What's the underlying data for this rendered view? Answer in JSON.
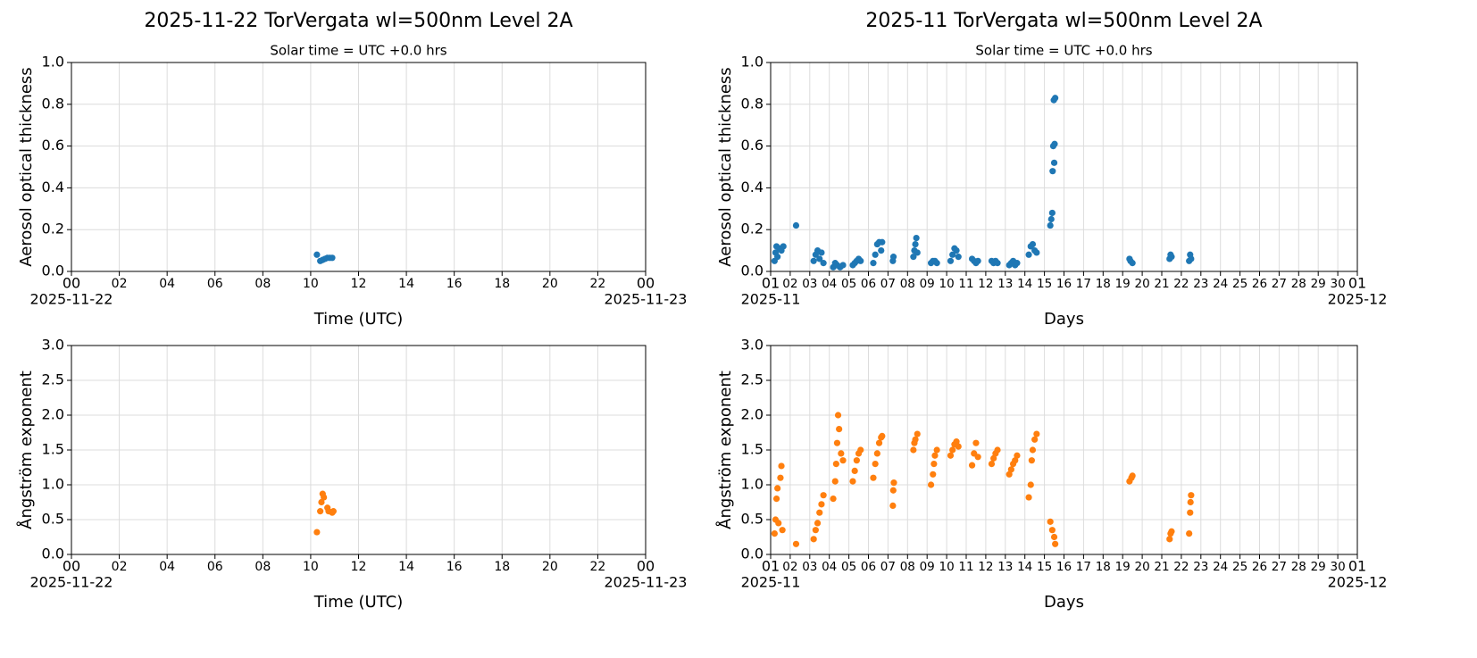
{
  "chart_data": [
    {
      "type": "scatter",
      "title": "2025-11-22  TorVergata  wl=500nm  Level 2A",
      "subtitle": "Solar time = UTC +0.0 hrs",
      "xlabel": "Time (UTC)",
      "ylabel": "Aerosol optical thickness",
      "color": "#1f77b4",
      "grid": true,
      "xlim": [
        0,
        24
      ],
      "ylim": [
        0,
        1
      ],
      "xticks": [
        {
          "value": 0,
          "label": "00"
        },
        {
          "value": 2,
          "label": "02"
        },
        {
          "value": 4,
          "label": "04"
        },
        {
          "value": 6,
          "label": "06"
        },
        {
          "value": 8,
          "label": "08"
        },
        10,
        12,
        14,
        16,
        18,
        20,
        22,
        {
          "value": 24,
          "label": "00"
        }
      ],
      "x_date_labels": [
        {
          "value": 0,
          "label": "2025-11-22"
        },
        {
          "value": 24,
          "label": "2025-11-23"
        }
      ],
      "yticks": [
        {
          "value": 0,
          "label": "0.0"
        },
        0.2,
        0.4,
        0.6,
        0.8,
        {
          "value": 1,
          "label": "1.0"
        }
      ],
      "x": [
        10.26,
        10.4,
        10.5,
        10.6,
        10.7,
        10.8,
        10.9
      ],
      "values": [
        0.08,
        0.05,
        0.055,
        0.06,
        0.065,
        0.065,
        0.065
      ]
    },
    {
      "type": "scatter",
      "title": "2025-11  TorVergata  wl=500nm  Level 2A",
      "subtitle": "Solar time = UTC +0.0 hrs",
      "xlabel": "Days",
      "ylabel": "Aerosol optical thickness",
      "color": "#1f77b4",
      "grid": true,
      "xlim": [
        1,
        31
      ],
      "ylim": [
        0,
        1
      ],
      "xticks": [
        {
          "value": 1,
          "label": "01"
        },
        {
          "value": 2,
          "label": "02"
        },
        {
          "value": 3,
          "label": "03"
        },
        {
          "value": 4,
          "label": "04"
        },
        {
          "value": 5,
          "label": "05"
        },
        {
          "value": 6,
          "label": "06"
        },
        {
          "value": 7,
          "label": "07"
        },
        {
          "value": 8,
          "label": "08"
        },
        {
          "value": 9,
          "label": "09"
        },
        10,
        11,
        12,
        13,
        14,
        15,
        16,
        17,
        18,
        19,
        20,
        21,
        22,
        23,
        24,
        25,
        26,
        27,
        28,
        29,
        30,
        {
          "value": 31,
          "label": "01"
        }
      ],
      "x_date_labels": [
        {
          "value": 1,
          "label": "2025-11"
        },
        {
          "value": 31,
          "label": "2025-12"
        }
      ],
      "yticks": [
        {
          "value": 0,
          "label": "0.0"
        },
        0.2,
        0.4,
        0.6,
        0.8,
        {
          "value": 1,
          "label": "1.0"
        }
      ],
      "x": [
        1.2,
        1.25,
        1.3,
        1.35,
        1.45,
        1.55,
        1.65,
        2.3,
        3.2,
        3.3,
        3.4,
        3.5,
        3.6,
        3.7,
        4.2,
        4.3,
        4.4,
        4.55,
        4.7,
        5.2,
        5.3,
        5.4,
        5.5,
        5.6,
        6.25,
        6.35,
        6.45,
        6.55,
        6.65,
        6.7,
        7.25,
        7.28,
        8.3,
        8.35,
        8.4,
        8.45,
        8.5,
        9.2,
        9.3,
        9.4,
        9.5,
        10.2,
        10.3,
        10.4,
        10.5,
        10.6,
        11.3,
        11.4,
        11.5,
        11.6,
        12.3,
        12.4,
        12.5,
        12.6,
        13.2,
        13.3,
        13.4,
        13.5,
        13.6,
        14.2,
        14.3,
        14.4,
        14.5,
        14.6,
        15.3,
        15.35,
        15.4,
        15.42,
        15.45,
        15.48,
        15.5,
        15.52,
        15.55,
        19.35,
        19.4,
        19.5,
        21.4,
        21.45,
        21.5,
        22.4,
        22.45,
        22.5
      ],
      "values": [
        0.05,
        0.09,
        0.12,
        0.07,
        0.11,
        0.1,
        0.12,
        0.22,
        0.05,
        0.08,
        0.1,
        0.06,
        0.09,
        0.04,
        0.02,
        0.04,
        0.03,
        0.02,
        0.03,
        0.03,
        0.04,
        0.05,
        0.06,
        0.05,
        0.04,
        0.08,
        0.13,
        0.14,
        0.1,
        0.14,
        0.05,
        0.07,
        0.07,
        0.1,
        0.13,
        0.16,
        0.09,
        0.04,
        0.05,
        0.05,
        0.04,
        0.05,
        0.08,
        0.11,
        0.1,
        0.07,
        0.06,
        0.05,
        0.04,
        0.05,
        0.05,
        0.04,
        0.05,
        0.04,
        0.03,
        0.04,
        0.05,
        0.03,
        0.04,
        0.08,
        0.12,
        0.13,
        0.1,
        0.09,
        0.22,
        0.25,
        0.28,
        0.48,
        0.6,
        0.82,
        0.52,
        0.61,
        0.83,
        0.06,
        0.05,
        0.04,
        0.06,
        0.08,
        0.07,
        0.05,
        0.08,
        0.06
      ]
    },
    {
      "type": "scatter",
      "xlabel": "Time (UTC)",
      "ylabel": "Ångström exponent",
      "color": "#ff7f0e",
      "grid": true,
      "xlim": [
        0,
        24
      ],
      "ylim": [
        0,
        3
      ],
      "xticks": [
        {
          "value": 0,
          "label": "00"
        },
        {
          "value": 2,
          "label": "02"
        },
        {
          "value": 4,
          "label": "04"
        },
        {
          "value": 6,
          "label": "06"
        },
        {
          "value": 8,
          "label": "08"
        },
        10,
        12,
        14,
        16,
        18,
        20,
        22,
        {
          "value": 24,
          "label": "00"
        }
      ],
      "x_date_labels": [
        {
          "value": 0,
          "label": "2025-11-22"
        },
        {
          "value": 24,
          "label": "2025-11-23"
        }
      ],
      "yticks": [
        {
          "value": 0,
          "label": "0.0"
        },
        0.5,
        {
          "value": 1,
          "label": "1.0"
        },
        1.5,
        {
          "value": 2,
          "label": "2.0"
        },
        2.5,
        {
          "value": 3,
          "label": "3.0"
        }
      ],
      "x": [
        10.26,
        10.4,
        10.45,
        10.5,
        10.55,
        10.7,
        10.75,
        10.9,
        10.95
      ],
      "values": [
        0.32,
        0.62,
        0.75,
        0.87,
        0.82,
        0.67,
        0.62,
        0.6,
        0.62
      ]
    },
    {
      "type": "scatter",
      "xlabel": "Days",
      "ylabel": "Ångström exponent",
      "color": "#ff7f0e",
      "grid": true,
      "xlim": [
        1,
        31
      ],
      "ylim": [
        0,
        3
      ],
      "xticks": [
        {
          "value": 1,
          "label": "01"
        },
        {
          "value": 2,
          "label": "02"
        },
        {
          "value": 3,
          "label": "03"
        },
        {
          "value": 4,
          "label": "04"
        },
        {
          "value": 5,
          "label": "05"
        },
        {
          "value": 6,
          "label": "06"
        },
        {
          "value": 7,
          "label": "07"
        },
        {
          "value": 8,
          "label": "08"
        },
        {
          "value": 9,
          "label": "09"
        },
        10,
        11,
        12,
        13,
        14,
        15,
        16,
        17,
        18,
        19,
        20,
        21,
        22,
        23,
        24,
        25,
        26,
        27,
        28,
        29,
        30,
        {
          "value": 31,
          "label": "01"
        }
      ],
      "x_date_labels": [
        {
          "value": 1,
          "label": "2025-11"
        },
        {
          "value": 31,
          "label": "2025-12"
        }
      ],
      "yticks": [
        {
          "value": 0,
          "label": "0.0"
        },
        0.5,
        {
          "value": 1,
          "label": "1.0"
        },
        1.5,
        {
          "value": 2,
          "label": "2.0"
        },
        2.5,
        {
          "value": 3,
          "label": "3.0"
        }
      ],
      "x": [
        1.2,
        1.25,
        1.3,
        1.35,
        1.4,
        1.5,
        1.55,
        1.6,
        2.3,
        3.2,
        3.3,
        3.4,
        3.5,
        3.6,
        3.7,
        4.2,
        4.3,
        4.35,
        4.4,
        4.45,
        4.5,
        4.6,
        4.7,
        5.2,
        5.3,
        5.4,
        5.5,
        5.6,
        6.25,
        6.35,
        6.45,
        6.55,
        6.65,
        6.7,
        7.25,
        7.27,
        7.3,
        8.3,
        8.35,
        8.4,
        8.5,
        9.2,
        9.3,
        9.35,
        9.4,
        9.5,
        10.2,
        10.3,
        10.4,
        10.5,
        10.6,
        11.3,
        11.4,
        11.5,
        11.6,
        12.3,
        12.4,
        12.5,
        12.6,
        13.2,
        13.3,
        13.4,
        13.5,
        13.6,
        14.2,
        14.3,
        14.35,
        14.4,
        14.5,
        14.6,
        15.3,
        15.4,
        15.5,
        15.55,
        19.35,
        19.45,
        19.5,
        21.4,
        21.45,
        21.5,
        22.4,
        22.45,
        22.47,
        22.5
      ],
      "values": [
        0.3,
        0.5,
        0.8,
        0.95,
        0.45,
        1.1,
        1.27,
        0.35,
        0.15,
        0.22,
        0.35,
        0.45,
        0.6,
        0.72,
        0.85,
        0.8,
        1.05,
        1.3,
        1.6,
        2.0,
        1.8,
        1.45,
        1.35,
        1.05,
        1.2,
        1.35,
        1.45,
        1.5,
        1.1,
        1.3,
        1.45,
        1.6,
        1.68,
        1.7,
        0.7,
        0.92,
        1.03,
        1.5,
        1.6,
        1.65,
        1.73,
        1.0,
        1.15,
        1.3,
        1.42,
        1.5,
        1.42,
        1.5,
        1.58,
        1.62,
        1.55,
        1.28,
        1.45,
        1.6,
        1.4,
        1.3,
        1.38,
        1.45,
        1.5,
        1.15,
        1.22,
        1.3,
        1.35,
        1.42,
        0.82,
        1.0,
        1.35,
        1.5,
        1.65,
        1.73,
        0.47,
        0.35,
        0.25,
        0.15,
        1.05,
        1.1,
        1.13,
        0.22,
        0.3,
        0.33,
        0.3,
        0.6,
        0.75,
        0.85
      ]
    }
  ]
}
